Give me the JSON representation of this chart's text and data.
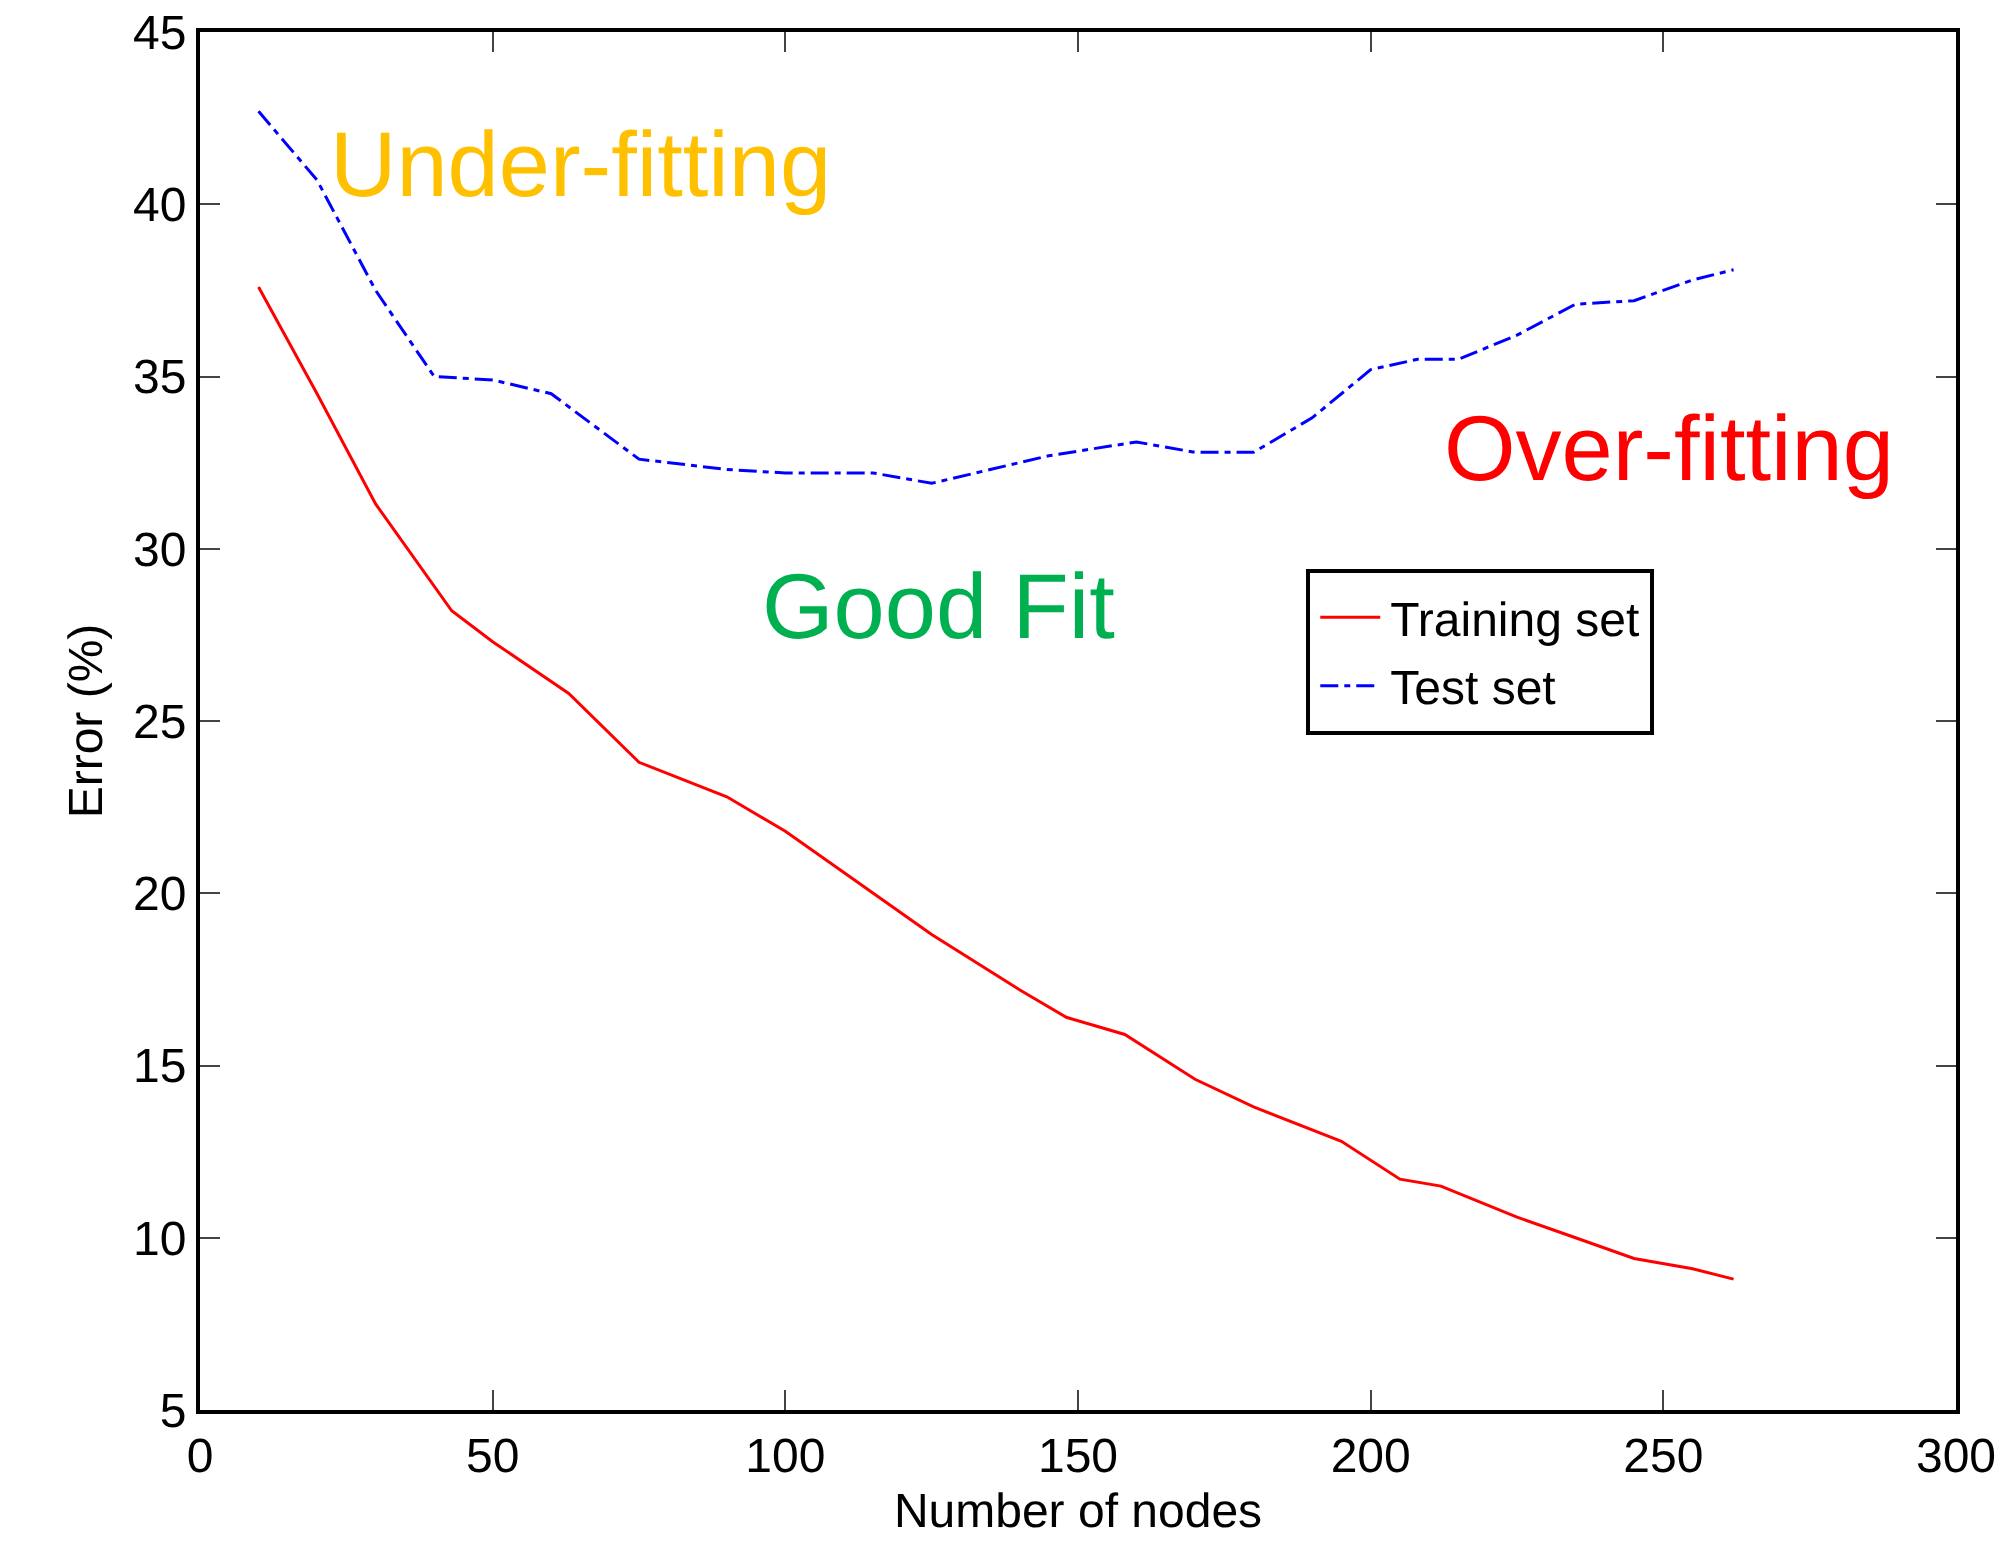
{
  "chart_data": {
    "type": "line",
    "xlabel": "Number of nodes",
    "ylabel": "Error (%)",
    "xlim": [
      0,
      300
    ],
    "xticks": [
      0,
      50,
      100,
      150,
      200,
      250,
      300
    ],
    "ylim": [
      5,
      45
    ],
    "yticks": [
      5,
      10,
      15,
      20,
      25,
      30,
      35,
      40,
      45
    ],
    "grid": false,
    "legend": "right",
    "marker": "none",
    "series": [
      {
        "name": "Training set",
        "color": "#ff0000",
        "line_style": "solid",
        "x": [
          10,
          20,
          30,
          43,
          50,
          63,
          75,
          90,
          100,
          110,
          125,
          140,
          148,
          158,
          170,
          180,
          195,
          205,
          212,
          225,
          235,
          245,
          255,
          262
        ],
        "values": [
          37.6,
          34.5,
          31.3,
          28.2,
          27.3,
          25.8,
          23.8,
          22.8,
          21.8,
          20.6,
          18.8,
          17.2,
          16.4,
          15.9,
          14.6,
          13.8,
          12.8,
          11.7,
          11.5,
          10.6,
          10.0,
          9.4,
          9.1,
          8.8
        ]
      },
      {
        "name": "Test set",
        "color": "#0000ff",
        "line_style": "dashdot",
        "x": [
          10,
          20,
          30,
          40,
          50,
          60,
          75,
          90,
          100,
          115,
          125,
          135,
          145,
          160,
          170,
          180,
          190,
          200,
          208,
          215,
          225,
          235,
          245,
          255,
          262
        ],
        "values": [
          42.7,
          40.7,
          37.5,
          35.0,
          34.9,
          34.5,
          32.6,
          32.3,
          32.2,
          32.2,
          31.9,
          32.3,
          32.7,
          33.1,
          32.8,
          32.8,
          33.8,
          35.2,
          35.5,
          35.5,
          36.2,
          37.1,
          37.2,
          37.8,
          38.1
        ]
      }
    ],
    "annotations": [
      "Under-fitting",
      "Good Fit",
      "Over-fitting"
    ]
  }
}
